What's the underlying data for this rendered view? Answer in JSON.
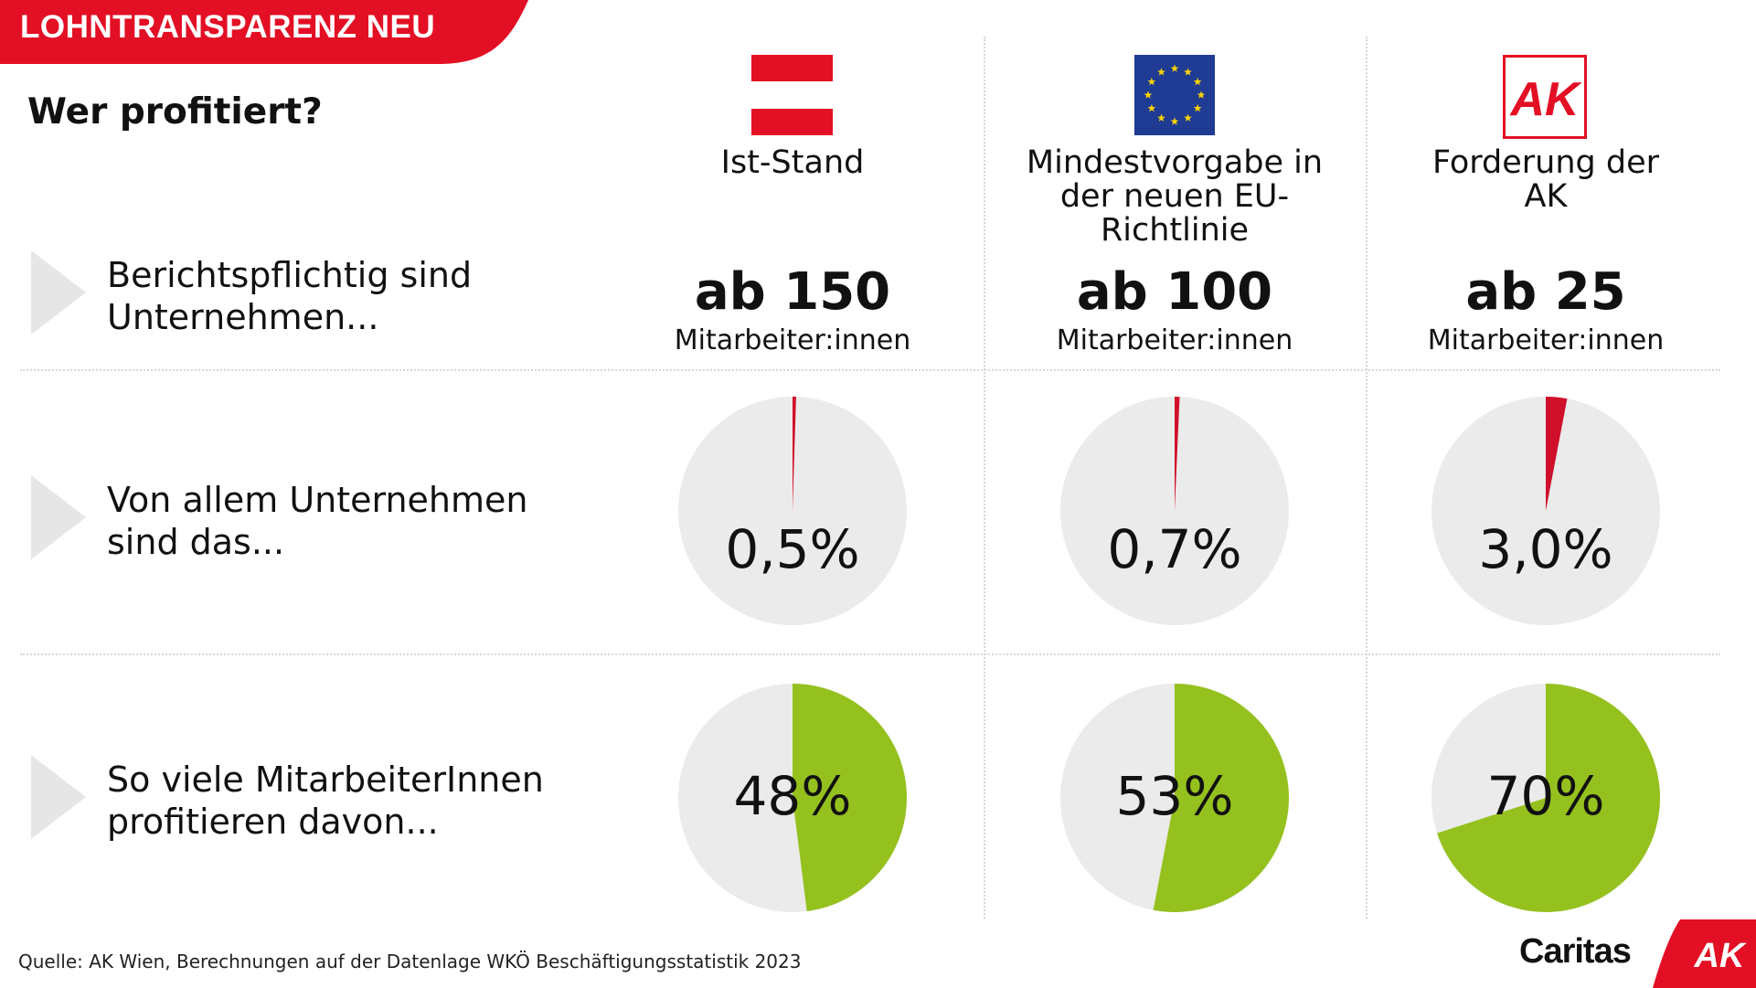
{
  "header": {
    "banner": "LOHNTRANSPARENZ NEU",
    "title": "Wer profitiert?"
  },
  "columns": [
    {
      "id": "at",
      "heading": "Ist-Stand",
      "icon": "austria-flag-icon",
      "threshold": "ab 150",
      "unit": "Mitarbeiter:innen",
      "share_label": "0,5%",
      "staff_label": "48%"
    },
    {
      "id": "eu",
      "heading": "Mindestvorgabe in der neuen EU-Richtlinie",
      "icon": "eu-flag-icon",
      "threshold": "ab 100",
      "unit": "Mitarbeiter:innen",
      "share_label": "0,7%",
      "staff_label": "53%"
    },
    {
      "id": "ak",
      "heading": "Forderung der AK",
      "icon": "ak-logo-icon",
      "logo_text": "AK",
      "threshold": "ab 25",
      "unit": "Mitarbeiter:innen",
      "share_label": "3,0%",
      "staff_label": "70%"
    }
  ],
  "rows": [
    {
      "label": "Berichtspflichtig sind Unternehmen..."
    },
    {
      "label": "Von allem Unternehmen sind das..."
    },
    {
      "label": "So viele MitarbeiterInnen profitieren davon..."
    }
  ],
  "chart_data": [
    {
      "type": "pie",
      "title": "",
      "categories": [
        "Ist-Stand",
        "Mindestvorgabe in der neuen EU-Richtlinie",
        "Forderung der AK"
      ],
      "values": [
        0.5,
        0.7,
        3.0
      ],
      "unit": "%",
      "highlight_color": "#d0102a",
      "rest_color": "#ebebeb"
    },
    {
      "type": "pie",
      "title": "",
      "categories": [
        "Ist-Stand",
        "Mindestvorgabe in der neuen EU-Richtlinie",
        "Forderung der AK"
      ],
      "values": [
        48,
        53,
        70
      ],
      "unit": "%",
      "highlight_color": "#95c11f",
      "rest_color": "#ebebeb"
    }
  ],
  "footer": {
    "source": "Quelle: AK Wien, Berechnungen auf der Datenlage WKÖ Beschäftigungsstatistik 2023",
    "brand": "Caritas",
    "corner_logo": "AK"
  },
  "colors": {
    "brand_red": "#e30f24",
    "green": "#95c11f",
    "light_gray": "#ebebeb"
  }
}
